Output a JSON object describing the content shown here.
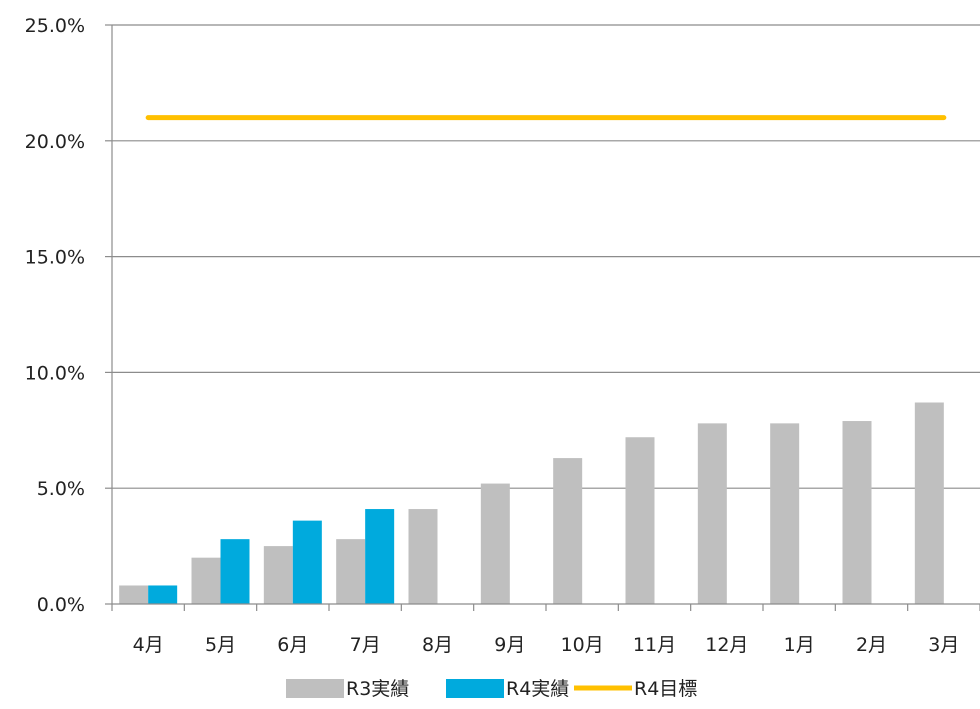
{
  "chart_data": {
    "type": "bar",
    "categories": [
      "4月",
      "5月",
      "6月",
      "7月",
      "8月",
      "9月",
      "10月",
      "11月",
      "12月",
      "1月",
      "2月",
      "3月"
    ],
    "series": [
      {
        "name": "R3実績",
        "type": "bar",
        "color": "#bfbfbf",
        "values": [
          0.8,
          2.0,
          2.5,
          2.8,
          4.1,
          5.2,
          6.3,
          7.2,
          7.8,
          7.8,
          7.9,
          8.7
        ]
      },
      {
        "name": "R4実績",
        "type": "bar",
        "color": "#00aadd",
        "values": [
          0.8,
          2.8,
          3.6,
          4.1,
          null,
          null,
          null,
          null,
          null,
          null,
          null,
          null
        ]
      },
      {
        "name": "R4目標",
        "type": "line",
        "color": "#ffc000",
        "values": [
          21.0,
          21.0,
          21.0,
          21.0,
          21.0,
          21.0,
          21.0,
          21.0,
          21.0,
          21.0,
          21.0,
          21.0
        ]
      }
    ],
    "yticks": [
      "0.0%",
      "5.0%",
      "10.0%",
      "15.0%",
      "20.0%",
      "25.0%"
    ],
    "ylim": [
      0,
      25
    ],
    "grid": true,
    "legend_position": "bottom"
  }
}
